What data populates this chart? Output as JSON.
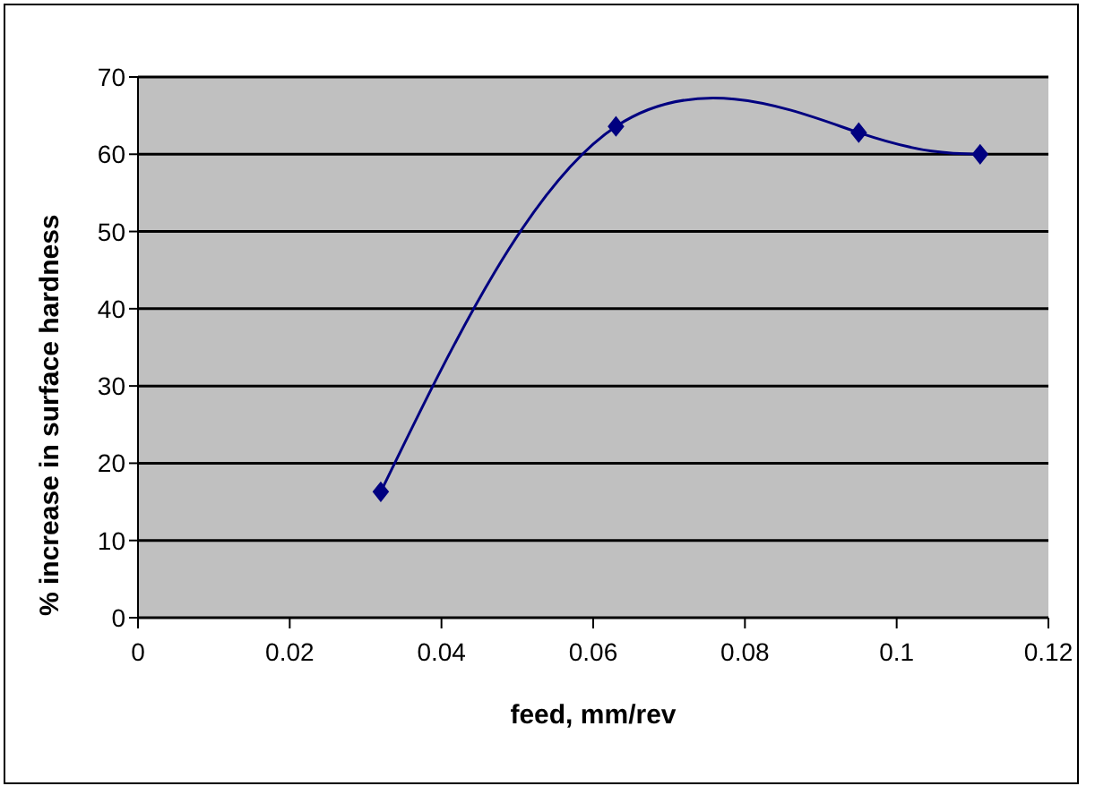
{
  "chart_data": {
    "type": "line",
    "xlabel": "feed, mm/rev",
    "ylabel": "% increase in surface hardness",
    "x": [
      0.032,
      0.063,
      0.095,
      0.111
    ],
    "series": [
      {
        "color": "#000080",
        "values": [
          16.3,
          63.6,
          62.8,
          60
        ]
      }
    ],
    "xlim": [
      0,
      0.12
    ],
    "xticks": [
      0,
      0.02,
      0.04,
      0.06,
      0.08,
      0.1,
      0.12
    ],
    "ylim": [
      0,
      70
    ],
    "yticks": [
      0,
      10,
      20,
      30,
      40,
      50,
      60,
      70
    ],
    "grid": "y",
    "marker": "diamond",
    "line_style": "solid",
    "legend": false
  }
}
